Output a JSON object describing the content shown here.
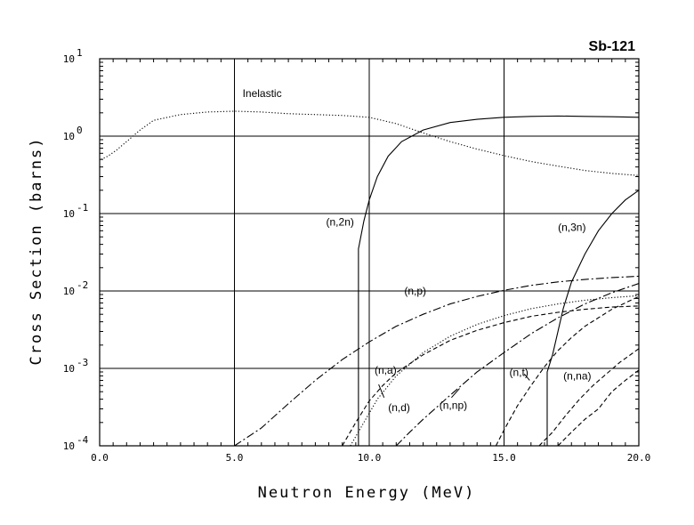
{
  "chart_data": {
    "type": "line",
    "title": "Sb-121",
    "xlabel": "Neutron Energy (MeV)",
    "ylabel": "Cross Section (barns)",
    "xlim": [
      0,
      20
    ],
    "ylim": [
      0.0001,
      10
    ],
    "yscale": "log",
    "grid": true,
    "x_ticks": [
      {
        "value": 0,
        "label": "0.0"
      },
      {
        "value": 5,
        "label": "5.0"
      },
      {
        "value": 10,
        "label": "10.0"
      },
      {
        "value": 15,
        "label": "15.0"
      },
      {
        "value": 20,
        "label": "20.0"
      }
    ],
    "y_ticks": [
      {
        "value": 10,
        "base": "10",
        "exp": "1"
      },
      {
        "value": 1,
        "base": "10",
        "exp": "0"
      },
      {
        "value": 0.1,
        "base": "10",
        "exp": "-1"
      },
      {
        "value": 0.01,
        "base": "10",
        "exp": "-2"
      },
      {
        "value": 0.001,
        "base": "10",
        "exp": "-3"
      },
      {
        "value": 0.0001,
        "base": "10",
        "exp": "-4"
      }
    ],
    "series": [
      {
        "name": "Inelastic",
        "style": "dotted",
        "x": [
          0.05,
          0.3,
          0.6,
          1.0,
          1.5,
          2.0,
          3.0,
          4.0,
          5.0,
          6.0,
          7.0,
          8.0,
          9.0,
          10.0,
          11.0,
          12.0,
          13.0,
          14.0,
          15.0,
          16.0,
          17.0,
          18.0,
          19.0,
          20.0
        ],
        "y": [
          0.5,
          0.55,
          0.65,
          0.85,
          1.2,
          1.6,
          1.9,
          2.05,
          2.1,
          2.05,
          1.95,
          1.9,
          1.85,
          1.75,
          1.45,
          1.1,
          0.85,
          0.68,
          0.56,
          0.47,
          0.41,
          0.36,
          0.33,
          0.31
        ]
      },
      {
        "name": "(n,2n)",
        "style": "solid",
        "x": [
          9.6,
          9.6,
          9.8,
          10.0,
          10.3,
          10.7,
          11.2,
          12.0,
          13.0,
          14.0,
          15.0,
          16.0,
          17.0,
          18.0,
          19.0,
          20.0
        ],
        "y": [
          0.0001,
          0.035,
          0.08,
          0.15,
          0.3,
          0.55,
          0.85,
          1.2,
          1.5,
          1.65,
          1.75,
          1.8,
          1.82,
          1.8,
          1.78,
          1.75
        ]
      },
      {
        "name": "(n,3n)",
        "style": "solid",
        "x": [
          16.6,
          16.6,
          16.8,
          17.0,
          17.2,
          17.5,
          18.0,
          18.5,
          19.0,
          19.5,
          20.0
        ],
        "y": [
          0.0001,
          0.0009,
          0.0015,
          0.003,
          0.006,
          0.013,
          0.03,
          0.06,
          0.1,
          0.15,
          0.2
        ]
      },
      {
        "name": "(n,p)",
        "style": "longdash",
        "x": [
          5.0,
          6.0,
          7.0,
          8.0,
          9.0,
          10.0,
          11.0,
          12.0,
          13.0,
          14.0,
          15.0,
          16.0,
          17.0,
          18.0,
          19.0,
          20.0
        ],
        "y": [
          0.0001,
          0.00017,
          0.00035,
          0.0007,
          0.0013,
          0.0022,
          0.0035,
          0.005,
          0.0068,
          0.0085,
          0.0102,
          0.0118,
          0.0131,
          0.0141,
          0.0149,
          0.0155
        ]
      },
      {
        "name": "(n,a)",
        "style": "dash",
        "x": [
          9.0,
          9.5,
          10.0,
          10.5,
          11.0,
          12.0,
          13.0,
          14.0,
          15.0,
          16.0,
          17.0,
          18.0,
          19.0,
          20.0
        ],
        "y": [
          0.0001,
          0.0002,
          0.00038,
          0.0006,
          0.00088,
          0.0015,
          0.0023,
          0.0031,
          0.0039,
          0.0047,
          0.0053,
          0.0058,
          0.0062,
          0.0064
        ]
      },
      {
        "name": "(n,d)",
        "style": "dotted",
        "x": [
          9.3,
          9.8,
          10.3,
          11.0,
          12.0,
          13.0,
          14.0,
          15.0,
          16.0,
          17.0,
          18.0,
          19.0,
          20.0
        ],
        "y": [
          0.0001,
          0.0002,
          0.0004,
          0.0008,
          0.0016,
          0.0026,
          0.0037,
          0.0048,
          0.0059,
          0.0068,
          0.0076,
          0.0082,
          0.0087
        ]
      },
      {
        "name": "(n,np)",
        "style": "longdash",
        "x": [
          11.0,
          11.5,
          12.0,
          13.0,
          14.0,
          15.0,
          16.0,
          17.0,
          18.0,
          19.0,
          20.0
        ],
        "y": [
          0.0001,
          0.00015,
          0.00022,
          0.00045,
          0.0009,
          0.0016,
          0.0028,
          0.0045,
          0.0068,
          0.0095,
          0.0125
        ]
      },
      {
        "name": "(n,t)",
        "style": "dash",
        "x": [
          14.7,
          15.0,
          15.5,
          16.0,
          16.5,
          17.0,
          17.5,
          18.0,
          19.0,
          20.0
        ],
        "y": [
          0.0001,
          0.00016,
          0.00033,
          0.0006,
          0.00105,
          0.0017,
          0.0025,
          0.0035,
          0.0058,
          0.0085
        ]
      },
      {
        "name": "(n,na)",
        "style": "dash",
        "x": [
          16.3,
          16.8,
          17.3,
          17.8,
          18.3,
          18.8,
          19.3,
          19.8,
          20.0
        ],
        "y": [
          0.0001,
          0.00015,
          0.00025,
          0.0004,
          0.0006,
          0.00085,
          0.0012,
          0.0016,
          0.0018
        ]
      },
      {
        "name": "unlabeled-1",
        "style": "dash",
        "x": [
          17.0,
          17.5,
          18.0,
          18.5,
          19.0,
          19.5,
          20.0
        ],
        "y": [
          0.0001,
          0.00015,
          0.00022,
          0.0003,
          0.0005,
          0.0007,
          0.00095
        ]
      }
    ],
    "annotations": [
      {
        "text": "Inelastic",
        "x": 5.3,
        "y": 3.2
      },
      {
        "text": "(n,2n)",
        "x": 8.4,
        "y": 0.07
      },
      {
        "text": "(n,3n)",
        "x": 17.0,
        "y": 0.06
      },
      {
        "text": "(n,p)",
        "x": 11.3,
        "y": 0.009
      },
      {
        "text": "(n,a)",
        "x": 10.2,
        "y": 0.00085
      },
      {
        "text": "(n,d)",
        "x": 10.7,
        "y": 0.00028
      },
      {
        "text": "(n,np)",
        "x": 12.6,
        "y": 0.0003
      },
      {
        "text": "(n,t)",
        "x": 15.2,
        "y": 0.0008
      },
      {
        "text": "(n,na)",
        "x": 17.2,
        "y": 0.00072
      }
    ]
  }
}
